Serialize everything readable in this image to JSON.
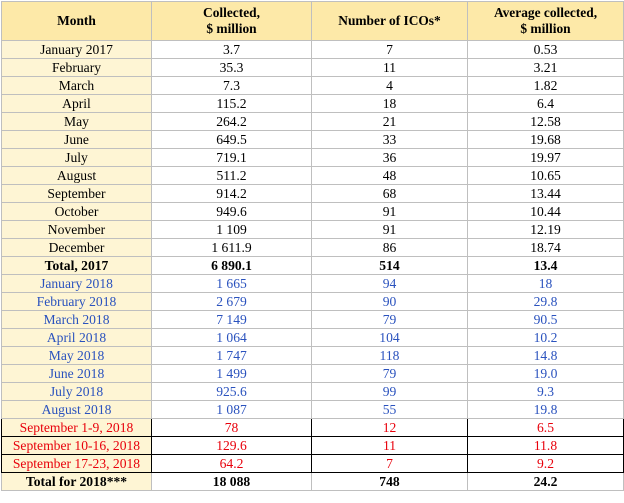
{
  "headers": {
    "month": "Month",
    "collected_line1": "Collected,",
    "collected_line2": "$ million",
    "icos": "Number of ICOs*",
    "avg_line1": "Average collected,",
    "avg_line2": "$ million"
  },
  "rows_2017": [
    {
      "month": "January 2017",
      "collected": "3.7",
      "icos": "7",
      "avg": "0.53"
    },
    {
      "month": "February",
      "collected": "35.3",
      "icos": "11",
      "avg": "3.21"
    },
    {
      "month": "March",
      "collected": "7.3",
      "icos": "4",
      "avg": "1.82"
    },
    {
      "month": "April",
      "collected": "115.2",
      "icos": "18",
      "avg": "6.4"
    },
    {
      "month": "May",
      "collected": "264.2",
      "icos": "21",
      "avg": "12.58"
    },
    {
      "month": "June",
      "collected": "649.5",
      "icos": "33",
      "avg": "19.68"
    },
    {
      "month": "July",
      "collected": "719.1",
      "icos": "36",
      "avg": "19.97"
    },
    {
      "month": "August",
      "collected": "511.2",
      "icos": "48",
      "avg": "10.65"
    },
    {
      "month": "September",
      "collected": "914.2",
      "icos": "68",
      "avg": "13.44"
    },
    {
      "month": "October",
      "collected": "949.6",
      "icos": "91",
      "avg": "10.44"
    },
    {
      "month": "November",
      "collected": "1 109",
      "icos": "91",
      "avg": "12.19"
    },
    {
      "month": "December",
      "collected": "1 611.9",
      "icos": "86",
      "avg": "18.74"
    }
  ],
  "total_2017": {
    "month": "Total, 2017",
    "collected": "6 890.1",
    "icos": "514",
    "avg": "13.4"
  },
  "rows_2018": [
    {
      "month": "January 2018",
      "collected": "1 665",
      "icos": "94",
      "avg": "18"
    },
    {
      "month": "February 2018",
      "collected": "2 679",
      "icos": "90",
      "avg": "29.8"
    },
    {
      "month": "March 2018",
      "collected": "7 149",
      "icos": "79",
      "avg": "90.5"
    },
    {
      "month": "April 2018",
      "collected": "1 064",
      "icos": "104",
      "avg": "10.2"
    },
    {
      "month": "May 2018",
      "collected": "1 747",
      "icos": "118",
      "avg": "14.8"
    },
    {
      "month": "June 2018",
      "collected": "1 499",
      "icos": "79",
      "avg": "19.0"
    },
    {
      "month": "July 2018",
      "collected": "925.6",
      "icos": "99",
      "avg": "9.3"
    },
    {
      "month": "August 2018",
      "collected": "1 087",
      "icos": "55",
      "avg": "19.8"
    }
  ],
  "rows_sept_2018": [
    {
      "month": "September 1-9, 2018",
      "collected": "78",
      "icos": "12",
      "avg": "6.5"
    },
    {
      "month": "September 10-16, 2018",
      "collected": "129.6",
      "icos": "11",
      "avg": "11.8"
    },
    {
      "month": "September 17-23, 2018",
      "collected": "64.2",
      "icos": "7",
      "avg": "9.2"
    }
  ],
  "total_2018": {
    "month": "Total for 2018***",
    "collected": "18 088",
    "icos": "748",
    "avg": "24.2"
  },
  "colors": {
    "header_bg": "#fde9a8",
    "month_bg": "#fef5d4",
    "blue_text": "#2a52be",
    "red_text": "#e8000b"
  }
}
